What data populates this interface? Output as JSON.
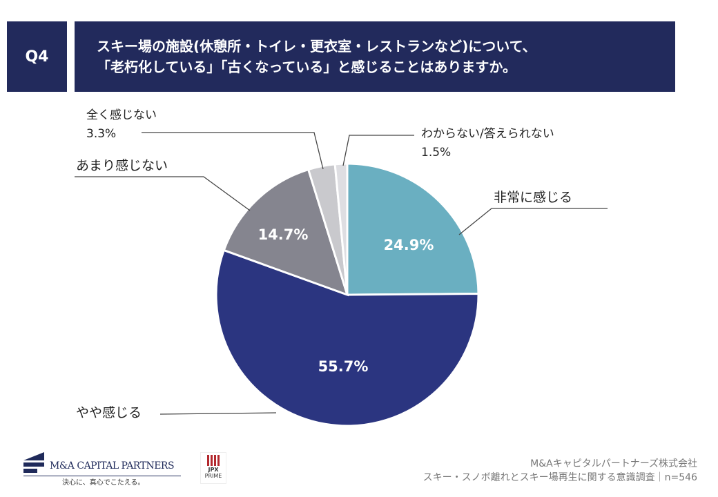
{
  "header": {
    "question_no": "Q4",
    "title_line1": "スキー場の施設(休憩所・トイレ・更衣室・レストランなど)について、",
    "title_line2": "「老朽化している」「古くなっている」と感じることはありますか。"
  },
  "chart_data": {
    "type": "pie",
    "start": "top",
    "direction": "clockwise",
    "categories": [
      "非常に感じる",
      "やや感じる",
      "あまり感じない",
      "全く感じない",
      "わからない/答えられない"
    ],
    "values": [
      24.9,
      55.7,
      14.7,
      3.3,
      1.5
    ],
    "labels": [
      "24.9%",
      "55.7%",
      "14.7%",
      "3.3%",
      "1.5%"
    ],
    "colors": [
      "#6aafc1",
      "#2b3580",
      "#85858f",
      "#c9c9cd",
      "#dedee2"
    ]
  },
  "footer": {
    "company": "M&Aキャピタルパートナーズ株式会社",
    "survey": "スキー・スノボ離れとスキー場再生に関する意識調査｜n=546"
  },
  "logo": {
    "name": "M&A CAPITAL PARTNERS",
    "tagline": "決心に、真心でこたえる。",
    "jpx": "JPX",
    "jpx_sub": "PRIME"
  }
}
